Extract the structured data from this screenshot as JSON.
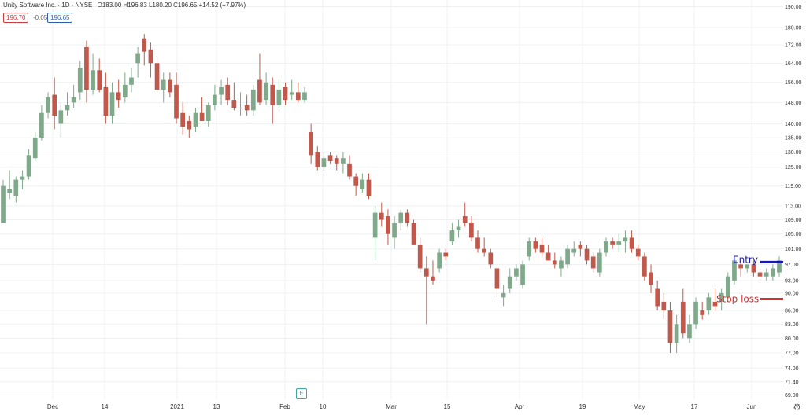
{
  "header": {
    "symbol": "Unity Software Inc. · 1D · NYSE",
    "ohlc": "O183.00 H196.83 L180.20 C196.65 +14.52 (+7.97%)",
    "price_box": "196.70",
    "change_small": "-0.05",
    "vol_box": "196.65"
  },
  "annotations": {
    "entry_label": "Entry",
    "stop_label": "Stop loss",
    "entry_color": "#1a1aa8",
    "stop_color": "#d32f2f",
    "entry_level": 97.6,
    "stop_level": 88.6
  },
  "chart_data": {
    "type": "candlestick",
    "y_ticks": [
      "190.00",
      "180.00",
      "172.00",
      "164.00",
      "156.00",
      "148.00",
      "140.00",
      "135.00",
      "130.00",
      "125.00",
      "119.00",
      "113.00",
      "109.00",
      "105.00",
      "101.00",
      "97.00",
      "93.00",
      "90.00",
      "86.00",
      "83.00",
      "80.00",
      "77.00",
      "74.00",
      "71.40",
      "69.00"
    ],
    "y_scale": "log",
    "ylim": [
      68.5,
      191
    ],
    "x_ticks": [
      "Dec",
      "14",
      "2021",
      "13",
      "Feb",
      "10",
      "Mar",
      "15",
      "Apr",
      "19",
      "May",
      "17",
      "Jun"
    ],
    "grid": true,
    "up_color": "#7fa98a",
    "down_color": "#c0594b",
    "candles": [
      {
        "o": 108,
        "h": 121,
        "l": 108,
        "c": 119
      },
      {
        "o": 117,
        "h": 124,
        "l": 115,
        "c": 118
      },
      {
        "o": 116,
        "h": 122,
        "l": 114,
        "c": 121
      },
      {
        "o": 121,
        "h": 124,
        "l": 118,
        "c": 122
      },
      {
        "o": 122,
        "h": 131,
        "l": 121,
        "c": 129
      },
      {
        "o": 128,
        "h": 137,
        "l": 127,
        "c": 135
      },
      {
        "o": 135,
        "h": 147,
        "l": 134,
        "c": 144
      },
      {
        "o": 144,
        "h": 152,
        "l": 142,
        "c": 150
      },
      {
        "o": 151,
        "h": 158,
        "l": 138,
        "c": 143
      },
      {
        "o": 140,
        "h": 148,
        "l": 135,
        "c": 145
      },
      {
        "o": 145,
        "h": 152,
        "l": 143,
        "c": 147
      },
      {
        "o": 148,
        "h": 155,
        "l": 146,
        "c": 150
      },
      {
        "o": 152,
        "h": 165,
        "l": 149,
        "c": 162
      },
      {
        "o": 171,
        "h": 174,
        "l": 148,
        "c": 153
      },
      {
        "o": 153,
        "h": 168,
        "l": 151,
        "c": 161
      },
      {
        "o": 161,
        "h": 166,
        "l": 152,
        "c": 153
      },
      {
        "o": 154,
        "h": 160,
        "l": 140,
        "c": 143
      },
      {
        "o": 143,
        "h": 156,
        "l": 140,
        "c": 152
      },
      {
        "o": 152,
        "h": 157,
        "l": 146,
        "c": 149
      },
      {
        "o": 150,
        "h": 160,
        "l": 148,
        "c": 155
      },
      {
        "o": 155,
        "h": 162,
        "l": 152,
        "c": 158
      },
      {
        "o": 164,
        "h": 171,
        "l": 158,
        "c": 168
      },
      {
        "o": 175,
        "h": 177,
        "l": 163,
        "c": 169
      },
      {
        "o": 170,
        "h": 173,
        "l": 158,
        "c": 164
      },
      {
        "o": 164,
        "h": 167,
        "l": 152,
        "c": 153
      },
      {
        "o": 153,
        "h": 160,
        "l": 148,
        "c": 157
      },
      {
        "o": 157,
        "h": 160,
        "l": 150,
        "c": 152
      },
      {
        "o": 155,
        "h": 160,
        "l": 140,
        "c": 142
      },
      {
        "o": 144,
        "h": 148,
        "l": 136,
        "c": 139
      },
      {
        "o": 141,
        "h": 143,
        "l": 135,
        "c": 138
      },
      {
        "o": 139,
        "h": 146,
        "l": 137,
        "c": 144
      },
      {
        "o": 144,
        "h": 150,
        "l": 141,
        "c": 141
      },
      {
        "o": 141,
        "h": 148,
        "l": 139,
        "c": 147
      },
      {
        "o": 147,
        "h": 155,
        "l": 145,
        "c": 151
      },
      {
        "o": 151,
        "h": 157,
        "l": 147,
        "c": 154
      },
      {
        "o": 155,
        "h": 158,
        "l": 147,
        "c": 149
      },
      {
        "o": 149,
        "h": 156,
        "l": 145,
        "c": 146
      },
      {
        "o": 146,
        "h": 152,
        "l": 143,
        "c": 146
      },
      {
        "o": 147,
        "h": 151,
        "l": 143,
        "c": 145
      },
      {
        "o": 145,
        "h": 155,
        "l": 143,
        "c": 153
      },
      {
        "o": 157,
        "h": 168,
        "l": 147,
        "c": 148
      },
      {
        "o": 149,
        "h": 160,
        "l": 147,
        "c": 156
      },
      {
        "o": 155,
        "h": 158,
        "l": 140,
        "c": 147
      },
      {
        "o": 147,
        "h": 157,
        "l": 146,
        "c": 153
      },
      {
        "o": 154,
        "h": 156,
        "l": 147,
        "c": 149
      },
      {
        "o": 151,
        "h": 157,
        "l": 149,
        "c": 152
      },
      {
        "o": 152,
        "h": 156,
        "l": 148,
        "c": 149
      },
      {
        "o": 149,
        "h": 154,
        "l": 148,
        "c": 152
      },
      {
        "o": 137,
        "h": 140,
        "l": 126,
        "c": 129
      },
      {
        "o": 130,
        "h": 132,
        "l": 124,
        "c": 125
      },
      {
        "o": 125,
        "h": 130,
        "l": 124,
        "c": 128
      },
      {
        "o": 129,
        "h": 130,
        "l": 126,
        "c": 127
      },
      {
        "o": 128,
        "h": 129,
        "l": 124,
        "c": 126
      },
      {
        "o": 126,
        "h": 130,
        "l": 123,
        "c": 128
      },
      {
        "o": 126,
        "h": 129,
        "l": 121,
        "c": 122
      },
      {
        "o": 122,
        "h": 123,
        "l": 116,
        "c": 119
      },
      {
        "o": 118,
        "h": 123,
        "l": 117,
        "c": 121
      },
      {
        "o": 121,
        "h": 123,
        "l": 115,
        "c": 116
      },
      {
        "o": 104,
        "h": 113,
        "l": 98,
        "c": 111
      },
      {
        "o": 111,
        "h": 114,
        "l": 107,
        "c": 109
      },
      {
        "o": 110,
        "h": 112,
        "l": 102,
        "c": 105
      },
      {
        "o": 104,
        "h": 110,
        "l": 101,
        "c": 108
      },
      {
        "o": 108,
        "h": 112,
        "l": 106,
        "c": 111
      },
      {
        "o": 111,
        "h": 112,
        "l": 107,
        "c": 108
      },
      {
        "o": 108,
        "h": 109,
        "l": 102,
        "c": 102
      },
      {
        "o": 102,
        "h": 104,
        "l": 95,
        "c": 96
      },
      {
        "o": 96,
        "h": 99,
        "l": 83,
        "c": 94
      },
      {
        "o": 94,
        "h": 98,
        "l": 92,
        "c": 93
      },
      {
        "o": 96,
        "h": 101,
        "l": 95,
        "c": 100
      },
      {
        "o": 100,
        "h": 101,
        "l": 98,
        "c": 99
      },
      {
        "o": 103,
        "h": 108,
        "l": 102,
        "c": 106
      },
      {
        "o": 106,
        "h": 109,
        "l": 104,
        "c": 107
      },
      {
        "o": 110,
        "h": 114,
        "l": 107,
        "c": 108
      },
      {
        "o": 108,
        "h": 110,
        "l": 103,
        "c": 104
      },
      {
        "o": 104,
        "h": 106,
        "l": 100,
        "c": 101
      },
      {
        "o": 101,
        "h": 104,
        "l": 99,
        "c": 100
      },
      {
        "o": 100,
        "h": 101,
        "l": 96,
        "c": 97
      },
      {
        "o": 96,
        "h": 97,
        "l": 89,
        "c": 91
      },
      {
        "o": 89,
        "h": 92,
        "l": 87,
        "c": 90
      },
      {
        "o": 91,
        "h": 96,
        "l": 90,
        "c": 94
      },
      {
        "o": 94,
        "h": 97,
        "l": 93,
        "c": 96
      },
      {
        "o": 92,
        "h": 98,
        "l": 91,
        "c": 97
      },
      {
        "o": 99,
        "h": 104,
        "l": 98,
        "c": 103
      },
      {
        "o": 103,
        "h": 104,
        "l": 100,
        "c": 101
      },
      {
        "o": 102,
        "h": 104,
        "l": 99,
        "c": 100
      },
      {
        "o": 100,
        "h": 102,
        "l": 98,
        "c": 98
      },
      {
        "o": 98,
        "h": 100,
        "l": 96,
        "c": 97
      },
      {
        "o": 96,
        "h": 99,
        "l": 94,
        "c": 98
      },
      {
        "o": 97,
        "h": 102,
        "l": 96,
        "c": 101
      },
      {
        "o": 100,
        "h": 103,
        "l": 99,
        "c": 101
      },
      {
        "o": 102,
        "h": 103,
        "l": 99,
        "c": 101
      },
      {
        "o": 101,
        "h": 102,
        "l": 97,
        "c": 98
      },
      {
        "o": 99,
        "h": 100,
        "l": 95,
        "c": 96
      },
      {
        "o": 95,
        "h": 101,
        "l": 94,
        "c": 100
      },
      {
        "o": 100,
        "h": 104,
        "l": 99,
        "c": 103
      },
      {
        "o": 103,
        "h": 104,
        "l": 101,
        "c": 102
      },
      {
        "o": 102,
        "h": 105,
        "l": 100,
        "c": 103
      },
      {
        "o": 103,
        "h": 106,
        "l": 100,
        "c": 104
      },
      {
        "o": 104,
        "h": 106,
        "l": 100,
        "c": 101
      },
      {
        "o": 101,
        "h": 102,
        "l": 98,
        "c": 99
      },
      {
        "o": 99,
        "h": 100,
        "l": 93,
        "c": 94
      },
      {
        "o": 95,
        "h": 97,
        "l": 90,
        "c": 92
      },
      {
        "o": 91,
        "h": 93,
        "l": 86,
        "c": 87
      },
      {
        "o": 88,
        "h": 90,
        "l": 84,
        "c": 86
      },
      {
        "o": 86,
        "h": 88,
        "l": 77,
        "c": 79
      },
      {
        "o": 79,
        "h": 85,
        "l": 77,
        "c": 83
      },
      {
        "o": 88,
        "h": 91,
        "l": 80,
        "c": 81
      },
      {
        "o": 80,
        "h": 85,
        "l": 79,
        "c": 83
      },
      {
        "o": 83,
        "h": 89,
        "l": 82,
        "c": 88
      },
      {
        "o": 86,
        "h": 88,
        "l": 84,
        "c": 85
      },
      {
        "o": 86,
        "h": 90,
        "l": 85,
        "c": 89
      },
      {
        "o": 88,
        "h": 91,
        "l": 86,
        "c": 87
      },
      {
        "o": 88,
        "h": 91,
        "l": 86,
        "c": 90
      },
      {
        "o": 89,
        "h": 95,
        "l": 88,
        "c": 94
      },
      {
        "o": 93,
        "h": 99,
        "l": 92,
        "c": 98
      },
      {
        "o": 97,
        "h": 98,
        "l": 94,
        "c": 96
      },
      {
        "o": 96,
        "h": 97,
        "l": 95,
        "c": 97
      },
      {
        "o": 97,
        "h": 98,
        "l": 94,
        "c": 95
      },
      {
        "o": 95,
        "h": 96,
        "l": 93,
        "c": 94
      },
      {
        "o": 94,
        "h": 96,
        "l": 93,
        "c": 95
      },
      {
        "o": 94,
        "h": 97,
        "l": 93,
        "c": 96
      },
      {
        "o": 95,
        "h": 99,
        "l": 94,
        "c": 98
      }
    ]
  }
}
